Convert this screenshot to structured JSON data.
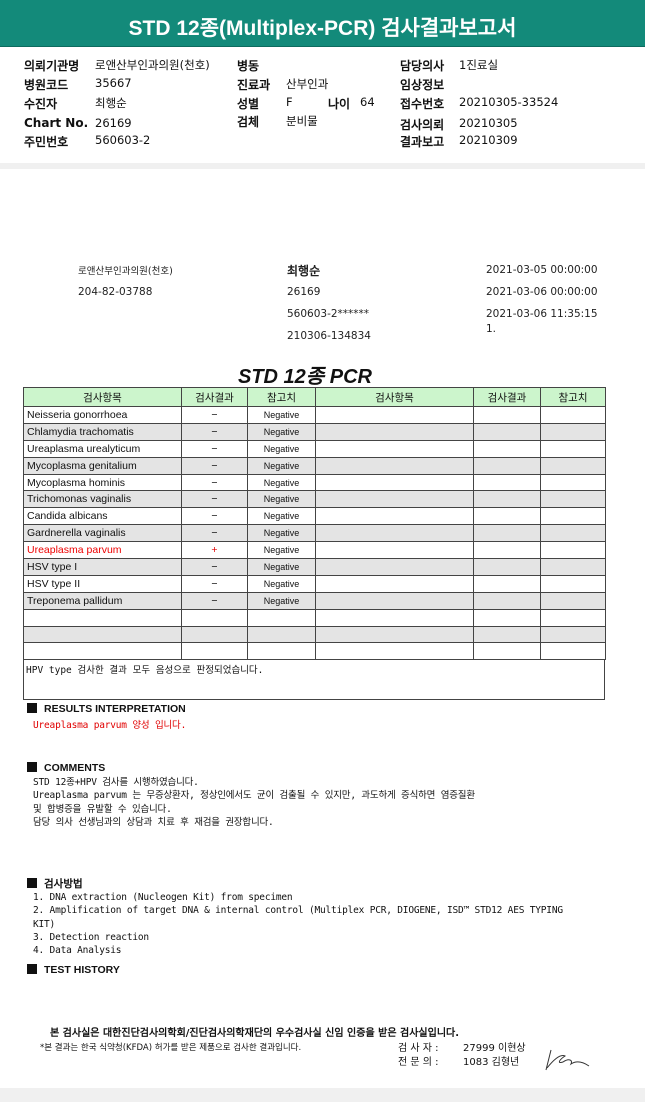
{
  "title": "STD 12종(Multiplex-PCR) 검사결과보고서",
  "header": {
    "institution_label": "의뢰기관명",
    "institution": "로앤산부인과의원(천호)",
    "ward_label": "병동",
    "ward": "",
    "doctor_label": "담당의사",
    "doctor": "1진료실",
    "hospital_code_label": "병원코드",
    "hospital_code": "35667",
    "dept_label": "진료과",
    "dept": "산부인과",
    "clinical_label": "임상정보",
    "clinical": "",
    "patient_label": "수진자",
    "patient": "최행순",
    "sex_label": "성별",
    "sex": "F",
    "age_label": "나이",
    "age": "64",
    "receipt_label": "접수번호",
    "receipt": "20210305-33524",
    "chart_label": "Chart No.",
    "chart": "26169",
    "specimen_label": "검체",
    "specimen": "분비물",
    "request_label": "검사의뢰",
    "request": "20210305",
    "id_label": "주민번호",
    "id": "560603-2",
    "report_label": "결과보고",
    "report": "20210309"
  },
  "info": {
    "clinic": "로앤산부인과의원(천호)",
    "biz_no": "204-82-03788",
    "patient": "최행순",
    "chart": "26169",
    "id_masked": "560603-2******",
    "sample_no": "210306-134834",
    "date1": "2021-03-05 00:00:00",
    "date2": "2021-03-06 00:00:00",
    "date3": "2021-03-06 11:35:15",
    "date3_cont": "1."
  },
  "table": {
    "title": "STD 12종 PCR",
    "headers": [
      "검사항목",
      "검사결과",
      "참고치",
      "검사항목",
      "검사결과",
      "참고치"
    ],
    "rows": [
      {
        "name": "Neisseria gonorrhoea",
        "result": "−",
        "ref": "Negative"
      },
      {
        "name": "Chlamydia trachomatis",
        "result": "−",
        "ref": "Negative"
      },
      {
        "name": "Ureaplasma urealyticum",
        "result": "−",
        "ref": "Negative"
      },
      {
        "name": "Mycoplasma genitalium",
        "result": "−",
        "ref": "Negative"
      },
      {
        "name": "Mycoplasma hominis",
        "result": "−",
        "ref": "Negative"
      },
      {
        "name": "Trichomonas vaginalis",
        "result": "−",
        "ref": "Negative"
      },
      {
        "name": "Candida albicans",
        "result": "−",
        "ref": "Negative"
      },
      {
        "name": "Gardnerella vaginalis",
        "result": "−",
        "ref": "Negative"
      },
      {
        "name": "Ureaplasma parvum",
        "result": "+",
        "ref": "Negative"
      },
      {
        "name": "HSV type I",
        "result": "−",
        "ref": "Negative"
      },
      {
        "name": "HSV type II",
        "result": "−",
        "ref": "Negative"
      },
      {
        "name": "Treponema pallidum",
        "result": "−",
        "ref": "Negative"
      }
    ],
    "note": "HPV type 검사한 결과 모두 음성으로 판정되었습니다.",
    "positive_color": "#e00000"
  },
  "interpretation": {
    "heading": "RESULTS   INTERPRETATION",
    "text": "Ureaplasma parvum 양성 입니다."
  },
  "comments": {
    "heading": "COMMENTS",
    "lines": [
      "STD 12종+HPV 검사를 시행하였습니다.",
      "Ureaplasma parvum 는 무증상환자, 정상인에서도 균이 검출될 수 있지만, 과도하게 증식하면 염증질환",
      "및 합병증을 유발할 수 있습니다.",
      "담당 의사 선생님과의 상담과 치료 후 재검을 권장합니다."
    ]
  },
  "method": {
    "heading": "검사방법",
    "lines": [
      "1. DNA extraction (Nucleogen Kit) from specimen",
      "2. Amplification of target DNA & internal control (Multiplex PCR, DIOGENE, ISD™ STD12 AES TYPING",
      "KIT)",
      "3. Detection reaction",
      "4. Data Analysis"
    ]
  },
  "history": {
    "heading": "TEST HISTORY"
  },
  "footer": {
    "cert": "본 검사실은 대한진단검사의학회/진단검사의학재단의 우수검사실 신임 인증을 받은 검사실입니다.",
    "kfda": "*본 결과는 한국 식약청(KFDA) 허가를 받은 제품으로 검사한 결과입니다.",
    "tester_label": "검 사 자 :",
    "tester": "27999 이현상",
    "specialist_label": "전 문 의 :",
    "specialist": "1083 김형년"
  },
  "colors": {
    "titlebar": "#138a7a",
    "table_header": "#ccf5cc",
    "alt_row": "#e4e4e4"
  }
}
